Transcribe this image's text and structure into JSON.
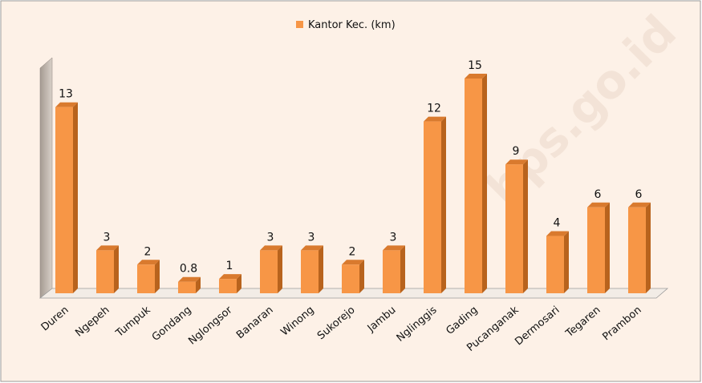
{
  "chart_data": {
    "type": "bar3d",
    "categories": [
      "Duren",
      "Ngepeh",
      "Tumpuk",
      "Gondang",
      "Nglongsor",
      "Banaran",
      "Winong",
      "Sukorejo",
      "Jambu",
      "Nglinggis",
      "Gading",
      "Pucanganak",
      "Dermosari",
      "Tegaren",
      "Prambon"
    ],
    "series": [
      {
        "name": "Kantor Kec. (km)",
        "color": "#f79646",
        "values": [
          13,
          3,
          2,
          0.8,
          1,
          3,
          3,
          2,
          3,
          12,
          15,
          9,
          4,
          6,
          6
        ]
      }
    ],
    "watermark": "bps.go.id"
  }
}
